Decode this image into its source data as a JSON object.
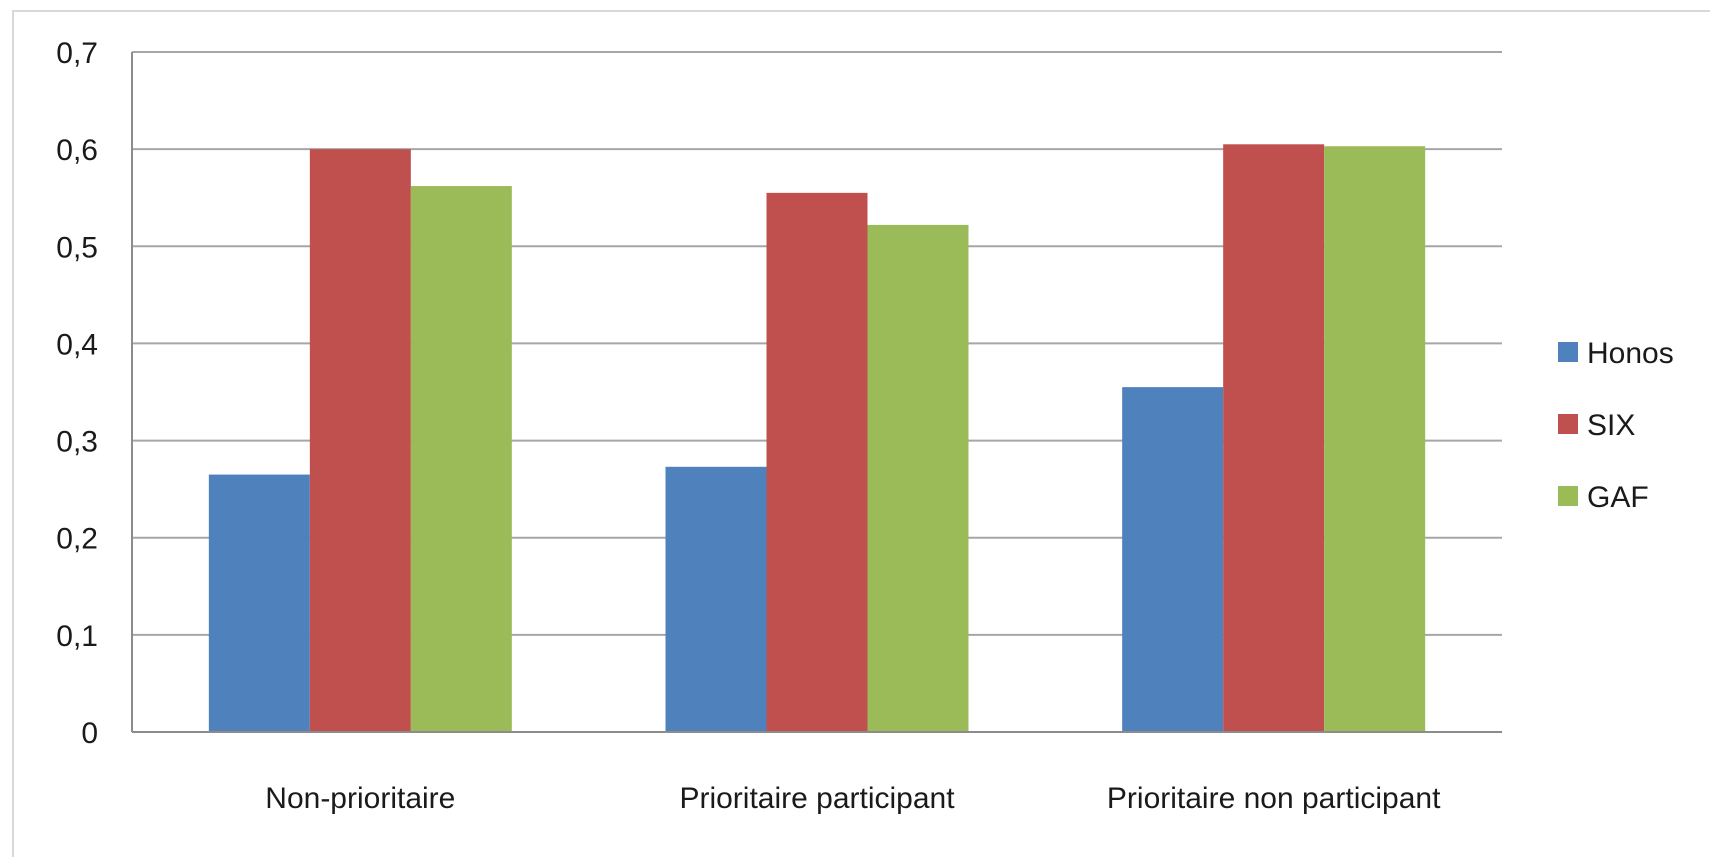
{
  "chart_data": {
    "type": "bar",
    "title": "",
    "xlabel": "",
    "ylabel": "",
    "categories": [
      "Non-prioritaire",
      "Prioritaire participant",
      "Prioritaire non participant"
    ],
    "series": [
      {
        "name": "Honos",
        "color": "#4f81bd",
        "values": [
          0.265,
          0.273,
          0.355
        ]
      },
      {
        "name": "SIX",
        "color": "#c0504d",
        "values": [
          0.6,
          0.555,
          0.605
        ]
      },
      {
        "name": "GAF",
        "color": "#9bbb59",
        "values": [
          0.562,
          0.522,
          0.603
        ]
      }
    ],
    "ylim": [
      0,
      0.7
    ],
    "yticks": [
      0,
      0.1,
      0.2,
      0.3,
      0.4,
      0.5,
      0.6,
      0.7
    ],
    "ytick_labels": [
      "0",
      "0,1",
      "0,2",
      "0,3",
      "0,4",
      "0,5",
      "0,6",
      "0,7"
    ],
    "grid": true,
    "legend_position": "right"
  }
}
